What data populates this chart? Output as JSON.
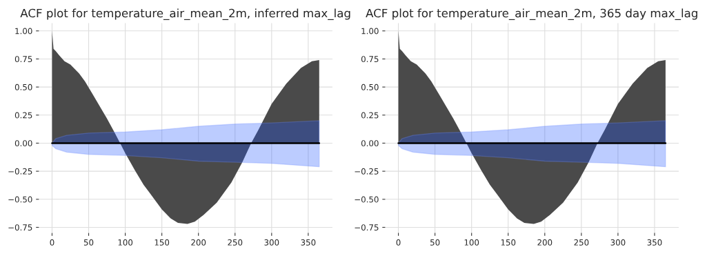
{
  "chart_data": [
    {
      "type": "area",
      "title": "ACF plot for temperature_air_mean_2m, inferred max_lag",
      "xlim": [
        -18,
        383
      ],
      "ylim": [
        -0.8,
        1.07
      ],
      "xticks": [
        0,
        50,
        100,
        150,
        200,
        250,
        300,
        350
      ],
      "yticks": [
        {
          "value": -0.75,
          "label": "−0.75"
        },
        {
          "value": -0.5,
          "label": "−0.50"
        },
        {
          "value": -0.25,
          "label": "−0.25"
        },
        {
          "value": 0,
          "label": "0.00"
        },
        {
          "value": 0.25,
          "label": "0.25"
        },
        {
          "value": 0.5,
          "label": "0.50"
        },
        {
          "value": 0.75,
          "label": "0.75"
        },
        {
          "value": 1,
          "label": "1.00"
        }
      ],
      "grid": true,
      "legend": false,
      "series": [
        {
          "color": "#4a4a4a",
          "x": [
            0,
            2,
            5,
            10,
            17,
            25,
            37,
            45,
            56,
            65,
            75,
            85,
            93,
            100,
            113,
            125,
            133,
            150,
            162,
            172,
            185,
            195,
            207,
            225,
            245,
            260,
            272,
            282,
            300,
            320,
            340,
            355,
            365
          ],
          "values": [
            1.0,
            0.84,
            0.82,
            0.78,
            0.73,
            0.7,
            0.62,
            0.55,
            0.43,
            0.33,
            0.22,
            0.1,
            0.0,
            -0.09,
            -0.24,
            -0.37,
            -0.44,
            -0.59,
            -0.67,
            -0.71,
            -0.72,
            -0.7,
            -0.64,
            -0.53,
            -0.35,
            -0.17,
            0.0,
            0.12,
            0.35,
            0.53,
            0.67,
            0.73,
            0.74
          ]
        },
        {
          "type": "line",
          "color": "#000000",
          "x": [
            0,
            5,
            20,
            50,
            100,
            150,
            200,
            250,
            300,
            365
          ],
          "values": [
            0,
            0,
            0,
            0,
            0,
            0,
            0,
            0,
            0,
            0
          ],
          "lower": [
            -0.02,
            -0.05,
            -0.08,
            -0.1,
            -0.11,
            -0.13,
            -0.16,
            -0.17,
            -0.18,
            -0.21
          ],
          "upper": [
            0.0,
            0.04,
            0.07,
            0.09,
            0.1,
            0.12,
            0.15,
            0.17,
            0.18,
            0.2
          ]
        }
      ]
    },
    {
      "type": "area",
      "title": "ACF plot for temperature_air_mean_2m, 365 day max_lag",
      "xlim": [
        -18,
        383
      ],
      "ylim": [
        -0.8,
        1.07
      ],
      "xticks": [
        0,
        50,
        100,
        150,
        200,
        250,
        300,
        350
      ],
      "yticks": [
        {
          "value": -0.75,
          "label": "−0.75"
        },
        {
          "value": -0.5,
          "label": "−0.50"
        },
        {
          "value": -0.25,
          "label": "−0.25"
        },
        {
          "value": 0,
          "label": "0.00"
        },
        {
          "value": 0.25,
          "label": "0.25"
        },
        {
          "value": 0.5,
          "label": "0.50"
        },
        {
          "value": 0.75,
          "label": "0.75"
        },
        {
          "value": 1,
          "label": "1.00"
        }
      ],
      "grid": true,
      "legend": false,
      "series": [
        {
          "color": "#4a4a4a",
          "x": [
            0,
            2,
            5,
            10,
            17,
            25,
            37,
            45,
            56,
            65,
            75,
            85,
            93,
            100,
            113,
            125,
            133,
            150,
            162,
            172,
            185,
            195,
            207,
            225,
            245,
            260,
            272,
            282,
            300,
            320,
            340,
            355,
            365
          ],
          "values": [
            1.0,
            0.84,
            0.82,
            0.78,
            0.73,
            0.7,
            0.62,
            0.55,
            0.43,
            0.33,
            0.22,
            0.1,
            0.0,
            -0.09,
            -0.24,
            -0.37,
            -0.44,
            -0.59,
            -0.67,
            -0.71,
            -0.72,
            -0.7,
            -0.64,
            -0.53,
            -0.35,
            -0.17,
            0.0,
            0.12,
            0.35,
            0.53,
            0.67,
            0.73,
            0.74
          ]
        },
        {
          "type": "line",
          "color": "#000000",
          "x": [
            0,
            5,
            20,
            50,
            100,
            150,
            200,
            250,
            300,
            365
          ],
          "values": [
            0,
            0,
            0,
            0,
            0,
            0,
            0,
            0,
            0,
            0
          ],
          "lower": [
            -0.02,
            -0.05,
            -0.08,
            -0.1,
            -0.11,
            -0.13,
            -0.16,
            -0.17,
            -0.18,
            -0.21
          ],
          "upper": [
            0.0,
            0.04,
            0.07,
            0.09,
            0.1,
            0.12,
            0.15,
            0.17,
            0.18,
            0.2
          ]
        }
      ]
    }
  ]
}
